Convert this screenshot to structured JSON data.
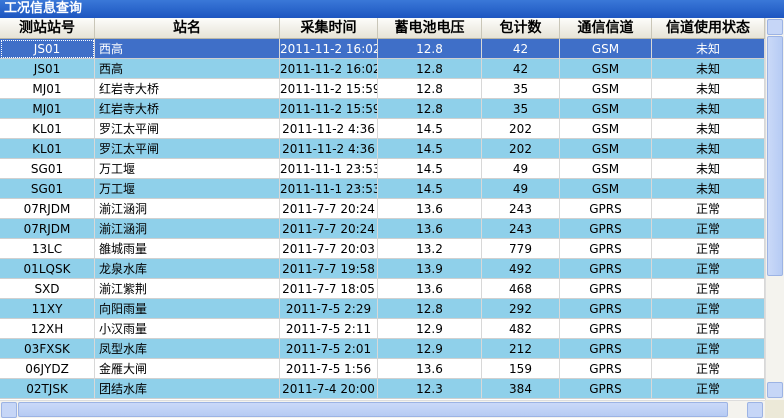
{
  "title": "工况信息查询",
  "table": {
    "headers": [
      "测站站号",
      "站名",
      "采集时间",
      "蓄电池电压",
      "包计数",
      "通信信道",
      "信道使用状态"
    ],
    "rows": [
      [
        "JS01",
        "西高",
        "2011-11-2 16:02",
        "12.8",
        "42",
        "GSM",
        "未知"
      ],
      [
        "JS01",
        "西高",
        "2011-11-2 16:02",
        "12.8",
        "42",
        "GSM",
        "未知"
      ],
      [
        "MJ01",
        "红岩寺大桥",
        "2011-11-2 15:59",
        "12.8",
        "35",
        "GSM",
        "未知"
      ],
      [
        "MJ01",
        "红岩寺大桥",
        "2011-11-2 15:59",
        "12.8",
        "35",
        "GSM",
        "未知"
      ],
      [
        "KL01",
        "罗江太平闸",
        "2011-11-2 4:36",
        "14.5",
        "202",
        "GSM",
        "未知"
      ],
      [
        "KL01",
        "罗江太平闸",
        "2011-11-2 4:36",
        "14.5",
        "202",
        "GSM",
        "未知"
      ],
      [
        "SG01",
        "万工堰",
        "2011-11-1 23:53",
        "14.5",
        "49",
        "GSM",
        "未知"
      ],
      [
        "SG01",
        "万工堰",
        "2011-11-1 23:53",
        "14.5",
        "49",
        "GSM",
        "未知"
      ],
      [
        "07RJDM",
        "湔江涵洞",
        "2011-7-7 20:24",
        "13.6",
        "243",
        "GPRS",
        "正常"
      ],
      [
        "07RJDM",
        "湔江涵洞",
        "2011-7-7 20:24",
        "13.6",
        "243",
        "GPRS",
        "正常"
      ],
      [
        "13LC",
        "雒城雨量",
        "2011-7-7 20:03",
        "13.2",
        "779",
        "GPRS",
        "正常"
      ],
      [
        "01LQSK",
        "龙泉水库",
        "2011-7-7 19:58",
        "13.9",
        "492",
        "GPRS",
        "正常"
      ],
      [
        "SXD",
        "湔江紫荆",
        "2011-7-7 18:05",
        "13.6",
        "468",
        "GPRS",
        "正常"
      ],
      [
        "11XY",
        "向阳雨量",
        "2011-7-5 2:29",
        "12.8",
        "292",
        "GPRS",
        "正常"
      ],
      [
        "12XH",
        "小汉雨量",
        "2011-7-5 2:11",
        "12.9",
        "482",
        "GPRS",
        "正常"
      ],
      [
        "03FXSK",
        "凤型水库",
        "2011-7-5 2:01",
        "12.9",
        "212",
        "GPRS",
        "正常"
      ],
      [
        "06JYDZ",
        "金雁大闸",
        "2011-7-5 1:56",
        "13.6",
        "159",
        "GPRS",
        "正常"
      ],
      [
        "02TJSK",
        "团结水库",
        "2011-7-4 20:00",
        "12.3",
        "384",
        "GPRS",
        "正常"
      ]
    ]
  }
}
